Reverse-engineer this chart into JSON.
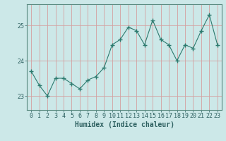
{
  "xlabel": "Humidex (Indice chaleur)",
  "ylabel": "",
  "x": [
    0,
    1,
    2,
    3,
    4,
    5,
    6,
    7,
    8,
    9,
    10,
    11,
    12,
    13,
    14,
    15,
    16,
    17,
    18,
    19,
    20,
    21,
    22,
    23
  ],
  "y": [
    23.7,
    23.3,
    23.0,
    23.5,
    23.5,
    23.35,
    23.2,
    23.45,
    23.55,
    23.8,
    24.45,
    24.6,
    24.95,
    24.85,
    24.45,
    25.15,
    24.6,
    24.45,
    24.0,
    24.45,
    24.35,
    24.85,
    25.3,
    24.45
  ],
  "ylim": [
    22.6,
    25.6
  ],
  "yticks": [
    23,
    24,
    25
  ],
  "xticks": [
    0,
    1,
    2,
    3,
    4,
    5,
    6,
    7,
    8,
    9,
    10,
    11,
    12,
    13,
    14,
    15,
    16,
    17,
    18,
    19,
    20,
    21,
    22,
    23
  ],
  "line_color": "#2d7a6e",
  "marker": "+",
  "marker_size": 4,
  "bg_color": "#cce8e8",
  "grid_color": "#d4a0a0",
  "axis_color": "#5a8a80",
  "tick_color": "#2d6060",
  "label_color": "#2d6060",
  "title_color": "#2d6060",
  "xlabel_fontsize": 7,
  "tick_fontsize": 6
}
